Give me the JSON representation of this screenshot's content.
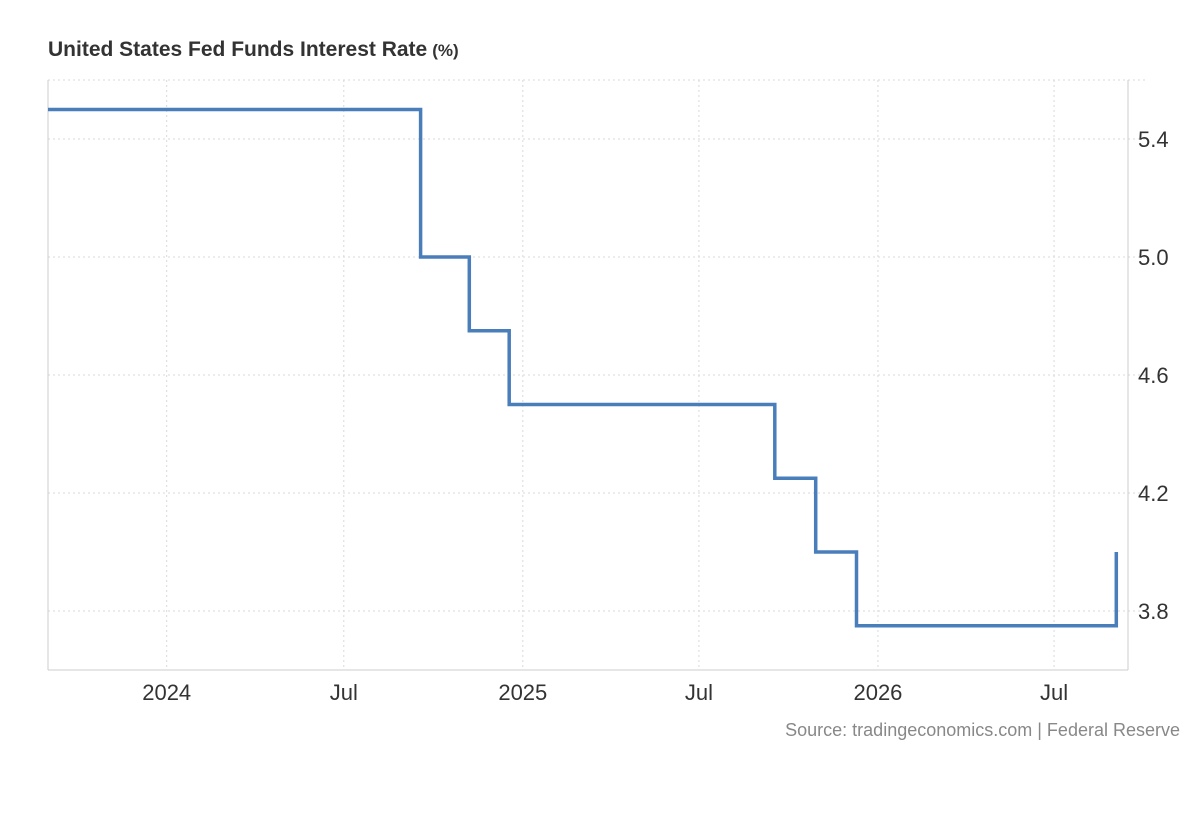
{
  "chart_data": {
    "type": "line",
    "title": "United States Fed Funds Interest Rate",
    "unit": "(%)",
    "source": "Source: tradingeconomics.com | Federal Reserve",
    "step": "after",
    "x_type": "date",
    "xlim": [
      "2023-09-01",
      "2026-09-15"
    ],
    "ylim": [
      3.6,
      5.6
    ],
    "x_ticks": [
      {
        "date": "2024-01-01",
        "label": "2024"
      },
      {
        "date": "2024-07-01",
        "label": "Jul"
      },
      {
        "date": "2025-01-01",
        "label": "2025"
      },
      {
        "date": "2025-07-01",
        "label": "Jul"
      },
      {
        "date": "2026-01-01",
        "label": "2026"
      },
      {
        "date": "2026-07-01",
        "label": "Jul"
      }
    ],
    "y_ticks": [
      3.8,
      4.2,
      4.6,
      5.0,
      5.4
    ],
    "y_tick_labels": [
      "3.8",
      "4.2",
      "4.6",
      "5.0",
      "5.4"
    ],
    "grid": true,
    "y_axis_position": "right",
    "line_color": "#4a7ebb",
    "series": [
      {
        "x": [
          "2023-09-01",
          "2024-09-18",
          "2024-11-07",
          "2024-12-18",
          "2025-09-17",
          "2025-10-29",
          "2025-12-10",
          "2026-09-02",
          "2026-09-03"
        ],
        "values": [
          5.5,
          5.0,
          4.75,
          4.5,
          4.25,
          4.0,
          3.75,
          3.75,
          4.0
        ]
      }
    ]
  }
}
